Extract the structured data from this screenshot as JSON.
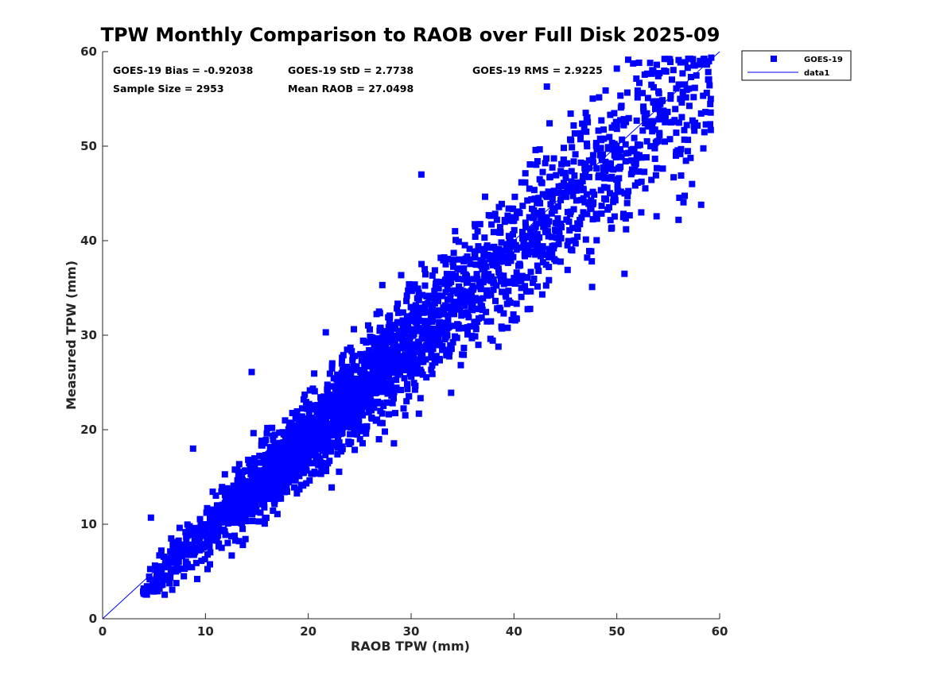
{
  "chart_data": {
    "type": "scatter",
    "title": "TPW Monthly Comparison to RAOB over Full Disk 2025-09",
    "xlabel": "RAOB TPW (mm)",
    "ylabel": "Measured TPW (mm)",
    "xlim": [
      0,
      60
    ],
    "ylim": [
      0,
      60
    ],
    "xticks": [
      "0",
      "10",
      "20",
      "30",
      "40",
      "50",
      "60"
    ],
    "yticks": [
      "0",
      "10",
      "20",
      "30",
      "40",
      "50",
      "60"
    ],
    "grid": false,
    "legend_position": "outside-top-right",
    "annotations": [
      "GOES-19 Bias = -0.92038",
      "GOES-19 StD = 2.7738",
      "GOES-19 RMS = 2.9225",
      "Sample Size = 2953",
      "Mean RAOB = 27.0498"
    ],
    "series": [
      {
        "name": "GOES-19",
        "kind": "scatter",
        "marker": "square",
        "color": "#0000ff",
        "sample_size": 2953,
        "bias": -0.92038,
        "std": 2.7738,
        "x_range": [
          3.9,
          59.2
        ],
        "outliers": [
          {
            "x": 31.0,
            "y": 47.0
          },
          {
            "x": 43.2,
            "y": 56.3
          },
          {
            "x": 14.5,
            "y": 26.1
          },
          {
            "x": 56.0,
            "y": 42.2
          },
          {
            "x": 58.2,
            "y": 43.8
          },
          {
            "x": 47.6,
            "y": 35.1
          },
          {
            "x": 50.9,
            "y": 41.2
          },
          {
            "x": 4.0,
            "y": 3.2
          },
          {
            "x": 9.2,
            "y": 4.2
          },
          {
            "x": 4.7,
            "y": 10.7
          },
          {
            "x": 8.8,
            "y": 18.0
          },
          {
            "x": 57.4,
            "y": 59.2
          },
          {
            "x": 27.2,
            "y": 35.3
          },
          {
            "x": 21.7,
            "y": 30.3
          }
        ]
      },
      {
        "name": "data1",
        "kind": "line",
        "color": "#0000ff",
        "x": [
          0,
          60
        ],
        "y": [
          0,
          60
        ]
      }
    ]
  }
}
